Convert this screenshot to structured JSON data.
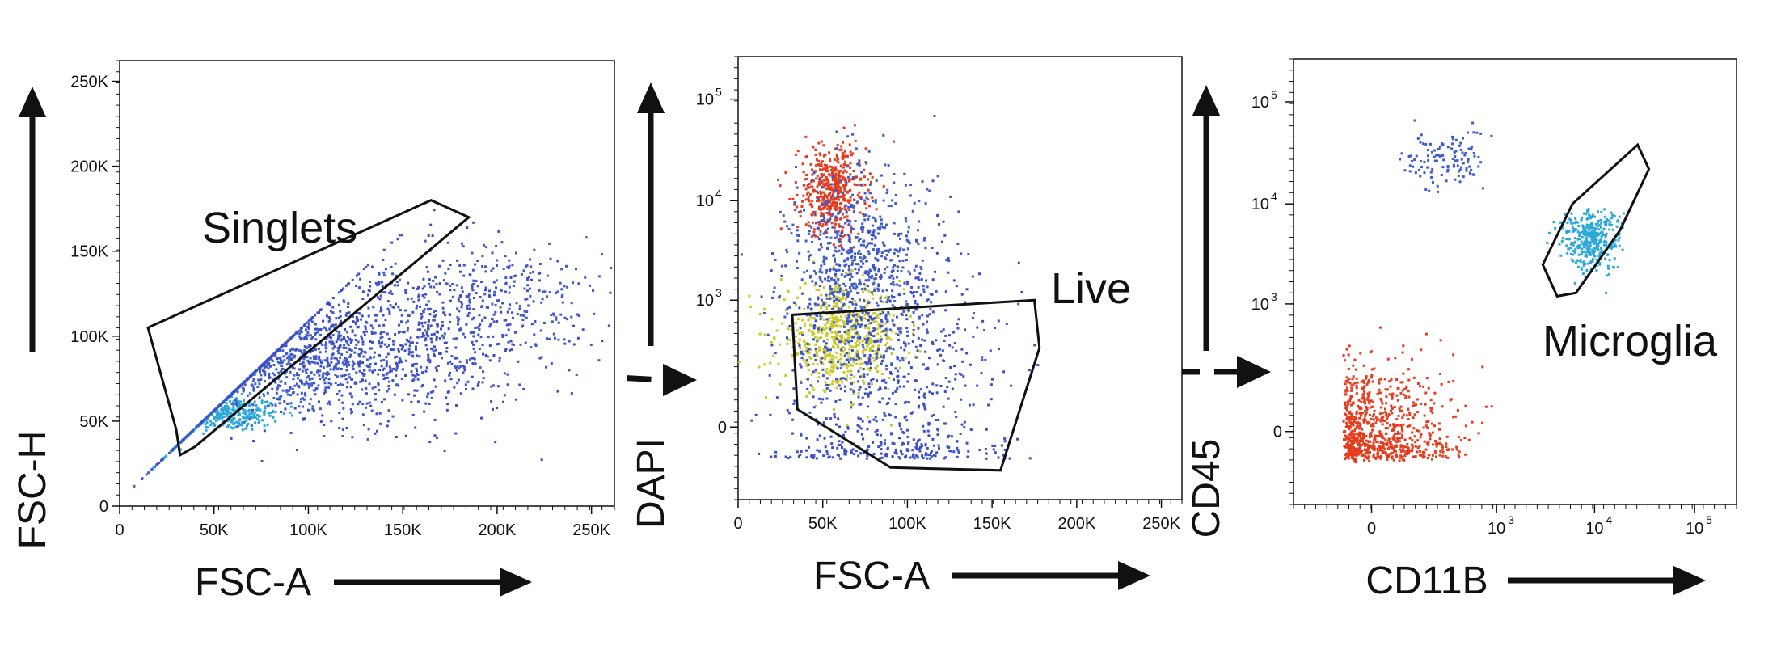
{
  "chart_data": [
    {
      "type": "scatter",
      "xlabel": "FSC-A",
      "ylabel": "FSC-H",
      "xlim": [
        0,
        262144
      ],
      "ylim": [
        0,
        262144
      ],
      "x_ticks": [
        "0",
        "50K",
        "100K",
        "150K",
        "200K",
        "250K"
      ],
      "y_ticks": [
        "0",
        "50K",
        "100K",
        "150K",
        "200K",
        "250K"
      ],
      "gate": {
        "label": "Singlets",
        "polygon": [
          [
            30000,
            45000
          ],
          [
            15000,
            105000
          ],
          [
            165000,
            180000
          ],
          [
            185000,
            170000
          ],
          [
            40000,
            35000
          ],
          [
            32000,
            30000
          ]
        ]
      },
      "populations": [
        {
          "center": [
            55000,
            55000
          ],
          "spread": [
            15000,
            5000
          ],
          "count": 350,
          "color": "#2aa8d8"
        },
        {
          "center": [
            90000,
            85000
          ],
          "spread": [
            30000,
            15000
          ],
          "count": 700,
          "color": "#3f5cc8"
        },
        {
          "center": [
            140000,
            100000
          ],
          "spread": [
            40000,
            25000
          ],
          "count": 800,
          "color": "#3c4fc4"
        },
        {
          "center": [
            200000,
            120000
          ],
          "spread": [
            30000,
            20000
          ],
          "count": 300,
          "color": "#4458c6"
        }
      ]
    },
    {
      "type": "scatter",
      "xlabel": "FSC-A",
      "ylabel": "DAPI",
      "xlim": [
        0,
        262144
      ],
      "y_scale": "biexponential",
      "x_ticks": [
        "0",
        "50K",
        "100K",
        "150K",
        "200K",
        "250K"
      ],
      "y_ticks": [
        "0",
        "10",
        "10",
        "10"
      ],
      "y_tick_exponents": [
        "",
        "3",
        "4",
        "5"
      ],
      "gate": {
        "label": "Live",
        "polygon": [
          [
            32000,
            700
          ],
          [
            175000,
            1000
          ],
          [
            178000,
            300
          ],
          [
            155000,
            -100
          ],
          [
            90000,
            -90
          ],
          [
            35000,
            30
          ]
        ]
      },
      "populations": [
        {
          "center": [
            55000,
            13000
          ],
          "spread": [
            10000,
            0.22
          ],
          "count": 500,
          "color": "#e53c1f"
        },
        {
          "center": [
            60000,
            400
          ],
          "spread": [
            18000,
            0.25
          ],
          "count": 600,
          "color": "#c9c92a"
        },
        {
          "center": [
            70000,
            2000
          ],
          "spread": [
            20000,
            0.5
          ],
          "count": 700,
          "color": "#3f5cc8"
        },
        {
          "center": [
            90000,
            100
          ],
          "spread": [
            35000,
            0.8
          ],
          "count": 700,
          "color": "#3c4fc4"
        }
      ]
    },
    {
      "type": "scatter",
      "xlabel": "CD11B",
      "ylabel": "CD45",
      "x_scale": "biexponential",
      "y_scale": "biexponential",
      "x_ticks": [
        "0",
        "10",
        "10",
        "10"
      ],
      "x_tick_exponents": [
        "",
        "3",
        "4",
        "5"
      ],
      "y_ticks": [
        "0",
        "10",
        "10",
        "10"
      ],
      "y_tick_exponents": [
        "",
        "3",
        "4",
        "5"
      ],
      "gate": {
        "label": "Microglia",
        "polygon": [
          [
            3000,
            2500
          ],
          [
            6000,
            10000
          ],
          [
            27000,
            38000
          ],
          [
            35000,
            22000
          ],
          [
            18000,
            5500
          ],
          [
            6500,
            1300
          ],
          [
            4200,
            1200
          ]
        ]
      },
      "populations": [
        {
          "center": [
            0,
            0
          ],
          "spread": [
            0.4,
            0.35
          ],
          "count": 800,
          "color": "#e53c1f"
        },
        {
          "center": [
            9000,
            4500
          ],
          "spread": [
            0.15,
            0.15
          ],
          "count": 350,
          "color": "#2aa8d8"
        },
        {
          "center": [
            250,
            28000
          ],
          "spread": [
            0.2,
            0.15
          ],
          "count": 120,
          "color": "#3f5cc8"
        }
      ]
    }
  ]
}
